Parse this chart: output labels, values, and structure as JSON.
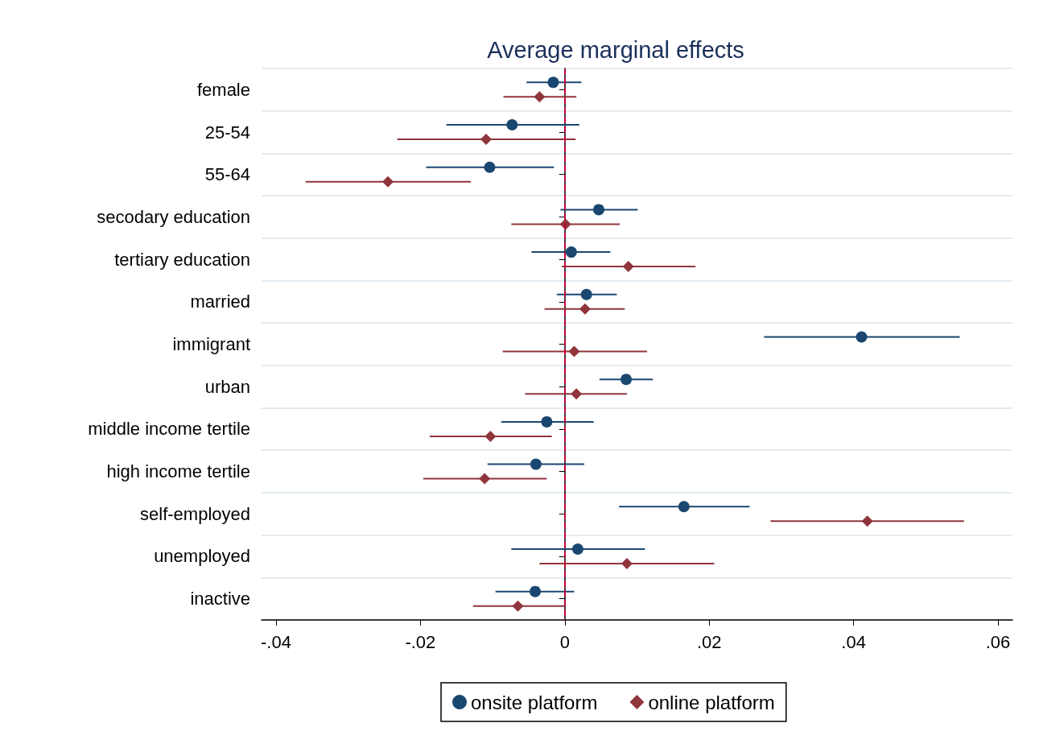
{
  "chart_data": {
    "type": "scatter",
    "title": "Average marginal effects",
    "orientation": "horizontal",
    "categories": [
      "female",
      "25-54",
      "55-64",
      "secodary education",
      "tertiary education",
      "married",
      "immigrant",
      "urban",
      "middle income tertile",
      "high income tertile",
      "self-employed",
      "unemployed",
      "inactive"
    ],
    "series": [
      {
        "name": "onsite platform",
        "color": "#1a476f",
        "marker": "circle",
        "values": [
          -0.0016,
          -0.0073,
          -0.0104,
          0.0047,
          0.0009,
          0.003,
          0.0411,
          0.0085,
          -0.0025,
          -0.004,
          0.0165,
          0.0018,
          -0.0041
        ],
        "errors": [
          [
            -0.0053,
            0.0023
          ],
          [
            -0.0164,
            0.002
          ],
          [
            -0.0192,
            -0.0015
          ],
          [
            -0.0006,
            0.0101
          ],
          [
            -0.0046,
            0.0063
          ],
          [
            -0.0011,
            0.0072
          ],
          [
            0.0276,
            0.0547
          ],
          [
            0.0048,
            0.0122
          ],
          [
            -0.0088,
            0.004
          ],
          [
            -0.0107,
            0.0027
          ],
          [
            0.0075,
            0.0256
          ],
          [
            -0.0074,
            0.0111
          ],
          [
            -0.0096,
            0.0013
          ]
        ]
      },
      {
        "name": "online platform",
        "color": "#90353b",
        "marker": "diamond",
        "values": [
          -0.0035,
          -0.0109,
          -0.0245,
          0.0001,
          0.0088,
          0.0028,
          0.0013,
          0.0016,
          -0.0103,
          -0.0111,
          0.0419,
          0.0086,
          -0.0065
        ],
        "errors": [
          [
            -0.0085,
            0.0016
          ],
          [
            -0.0232,
            0.0015
          ],
          [
            -0.0359,
            -0.013
          ],
          [
            -0.0074,
            0.0076
          ],
          [
            -0.0004,
            0.0181
          ],
          [
            -0.0028,
            0.0083
          ],
          [
            -0.0086,
            0.0114
          ],
          [
            -0.0055,
            0.0086
          ],
          [
            -0.0187,
            -0.0018
          ],
          [
            -0.0196,
            -0.0025
          ],
          [
            0.0285,
            0.0553
          ],
          [
            -0.0035,
            0.0207
          ],
          [
            -0.0127,
            0.0
          ]
        ]
      }
    ],
    "xlim": [
      -0.042,
      0.062
    ],
    "xticks": [
      {
        "value": -0.04,
        "label": "-.04"
      },
      {
        "value": -0.02,
        "label": "-.02"
      },
      0,
      {
        "value": 0.02,
        "label": ".02"
      },
      {
        "value": 0.04,
        "label": ".04"
      },
      {
        "value": 0.06,
        "label": ".06"
      }
    ],
    "ref_lines": [
      {
        "axis": "x",
        "value": 0,
        "color": "#c10534",
        "line_style": "dashed"
      }
    ],
    "grid": "y",
    "legend": "bottom"
  }
}
